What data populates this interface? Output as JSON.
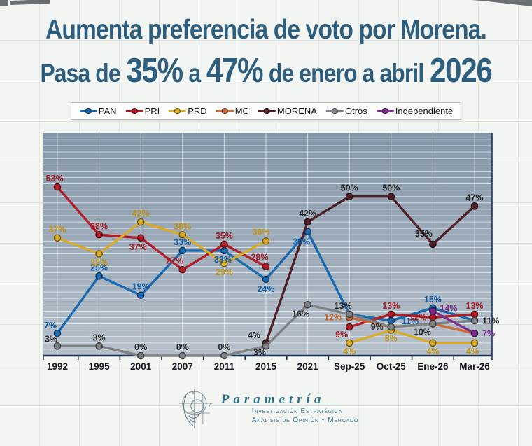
{
  "title": {
    "line1": "Aumenta preferencia de voto por Morena.",
    "line2": {
      "pre": "Pasa de",
      "num1": "35%",
      "mid": "a",
      "num2": "47%",
      "post": "de enero a abril",
      "year": "2026"
    }
  },
  "colors": {
    "title_text": "#2e5e7e",
    "plot_gradient_top": "#8496a9",
    "plot_gradient_bottom": "#b6c1cb",
    "axis": "#1c3350",
    "tick_label": "#14181f"
  },
  "chart_data": {
    "type": "line",
    "title": "Preferencia de voto por partido",
    "categories": [
      "1992",
      "1995",
      "2001",
      "2007",
      "2011",
      "2015",
      "2021",
      "Sep-25",
      "Oct-25",
      "Ene-26",
      "Mar-26"
    ],
    "ylim": [
      0,
      70
    ],
    "grid": true,
    "legend_position": "top",
    "series": [
      {
        "name": "PAN",
        "color": "#1b69ae",
        "label_color": "#0f5ca8",
        "values": [
          7,
          25,
          19,
          33,
          33,
          24,
          39,
          13,
          11,
          15,
          11
        ],
        "labels": [
          "7%",
          "25%",
          "19%",
          "33%",
          "33%",
          "24%",
          "39%",
          null,
          "11%",
          "15%",
          null
        ]
      },
      {
        "name": "PRI",
        "color": "#b01e28",
        "label_color": "#a51e23",
        "values": [
          53,
          38,
          37,
          27,
          35,
          28,
          null,
          9,
          13,
          12,
          13
        ],
        "labels": [
          "53%",
          "38%",
          "37%",
          "27%",
          "35%",
          "28%",
          null,
          "9%",
          "13%",
          "12%",
          "13%"
        ]
      },
      {
        "name": "PRD",
        "color": "#d9ab26",
        "label_color": "#c0930e",
        "values": [
          37,
          32,
          42,
          38,
          29,
          36,
          null,
          4,
          8,
          4,
          4
        ],
        "labels": [
          "37%",
          "32%",
          "42%",
          "38%",
          "29%",
          "36%",
          null,
          "4%",
          "8%",
          "4%",
          "4%"
        ]
      },
      {
        "name": "MC",
        "color": "#cb6a38",
        "label_color": "#cc6222",
        "values": [
          null,
          null,
          null,
          null,
          null,
          null,
          null,
          12,
          9,
          10,
          7
        ],
        "labels": [
          null,
          null,
          null,
          null,
          null,
          null,
          null,
          "12%",
          null,
          null,
          null
        ]
      },
      {
        "name": "MORENA",
        "color": "#4e2127",
        "label_color": "#1f1f1f",
        "values": [
          null,
          null,
          null,
          null,
          null,
          4,
          42,
          50,
          50,
          35,
          47
        ],
        "labels": [
          null,
          null,
          null,
          null,
          null,
          "4%",
          "42%",
          "50%",
          "50%",
          "35%",
          "47%"
        ]
      },
      {
        "name": "Otros",
        "color": "#7f8285",
        "label_color": "#2b2b2b",
        "values": [
          3,
          3,
          0,
          0,
          0,
          3,
          16,
          13,
          9,
          10,
          11
        ],
        "labels": [
          "3%",
          "3%",
          "0%",
          "0%",
          "0%",
          "3%",
          "16%",
          "13%",
          "9%",
          "10%",
          "11%"
        ]
      },
      {
        "name": "Independiente",
        "color": "#7e2f8e",
        "label_color": "#7c2d8c",
        "values": [
          null,
          null,
          null,
          null,
          null,
          null,
          null,
          null,
          null,
          14,
          7
        ],
        "labels": [
          null,
          null,
          null,
          null,
          null,
          null,
          null,
          null,
          null,
          "14%",
          "7%"
        ]
      }
    ]
  },
  "footer": {
    "brand": "Parametría",
    "tagline1": "Investigación Estratégica",
    "tagline2": "Análisis de Opinión y Mercado"
  }
}
